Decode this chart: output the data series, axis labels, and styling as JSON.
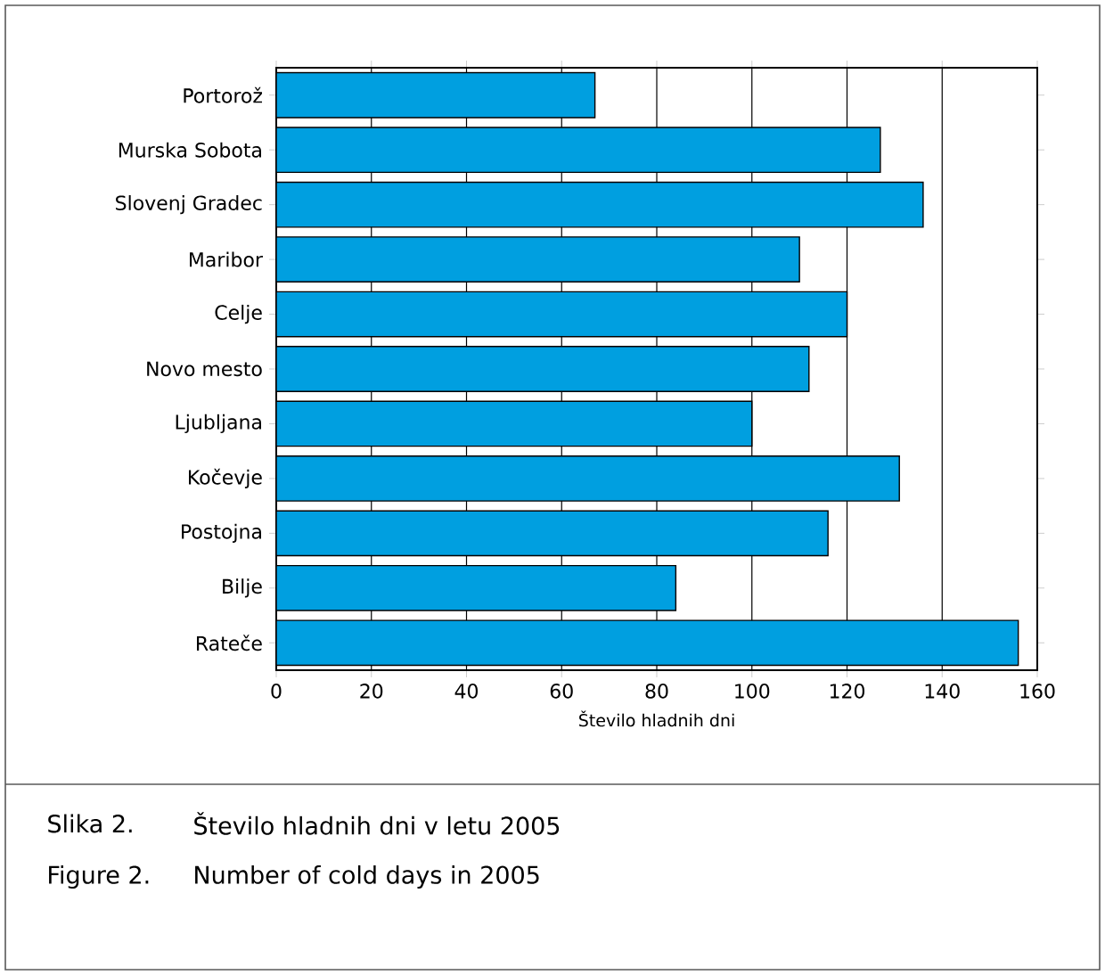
{
  "chart_data": {
    "type": "bar",
    "orientation": "horizontal",
    "categories": [
      "Portorož",
      "Murska Sobota",
      "Slovenj Gradec",
      "Maribor",
      "Celje",
      "Novo mesto",
      "Ljubljana",
      "Kočevje",
      "Postojna",
      "Bilje",
      "Rateče"
    ],
    "values": [
      67,
      127,
      136,
      110,
      120,
      112,
      100,
      131,
      116,
      84,
      156
    ],
    "color": "#009fe0",
    "xlim": [
      0,
      160
    ],
    "xticks": [
      0,
      20,
      40,
      60,
      80,
      100,
      120,
      140,
      160
    ],
    "xlabel": "Število hladnih dni",
    "grid": "x",
    "annotations": [
      "Slika 2.",
      "Število hladnih dni v letu 2005",
      "Figure 2.",
      "Number of cold days in 2005"
    ]
  }
}
